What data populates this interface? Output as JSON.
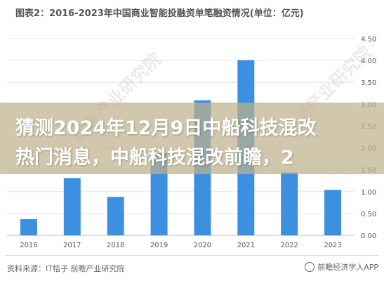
{
  "chart_data": {
    "type": "bar",
    "title": "图表2：2016-2023年中国商业智能投融资单笔融资情况(单位：亿元)",
    "categories": [
      "2016",
      "2017",
      "2018",
      "2019",
      "2020",
      "2021",
      "2022",
      "2023"
    ],
    "values": [
      0.37,
      1.31,
      0.88,
      1.88,
      3.09,
      4.01,
      1.44,
      1.04
    ],
    "ylim": [
      0,
      4.5
    ],
    "yticks": [
      "0.00",
      "0.50",
      "1.00",
      "1.50",
      "2.00",
      "2.50",
      "3.00",
      "3.50",
      "4.00",
      "4.50"
    ],
    "grid": true,
    "bar_color": "#3d8fe0"
  },
  "watermark": "前瞻产业研究院",
  "overlay": {
    "line1": "猜测2024年12月9日中船科技混改",
    "line2": "热门消息，中船科技混改前瞻，2"
  },
  "footer": {
    "source": "资料来源：IT桔子 前瞻产业研究院",
    "brand": "前瞻经济学人APP",
    "brand_icon": "brand-circle-icon"
  }
}
